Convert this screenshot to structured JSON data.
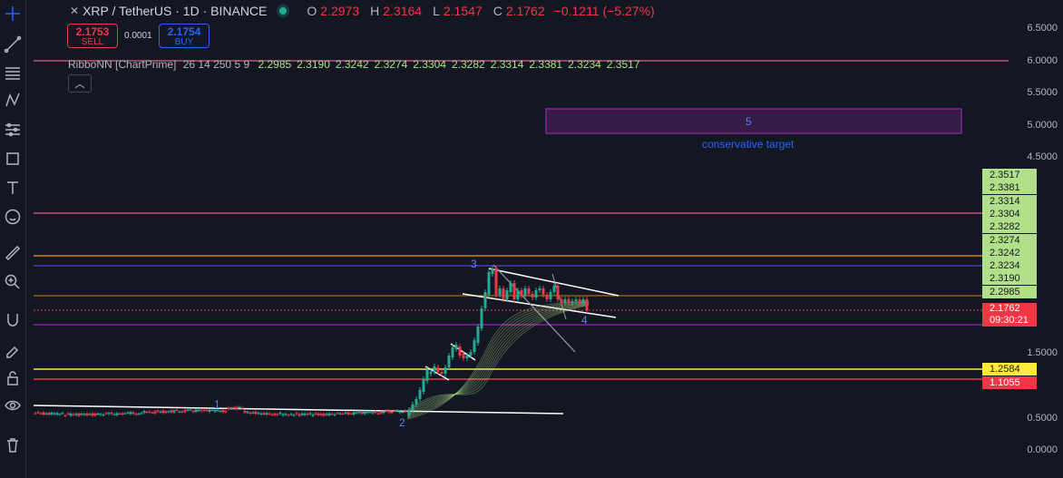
{
  "header": {
    "symbol": "XRP / TetherUS · 1D · BINANCE",
    "ohlc": [
      {
        "key": "O",
        "value": "2.2973"
      },
      {
        "key": "H",
        "value": "2.3164"
      },
      {
        "key": "L",
        "value": "2.1547"
      },
      {
        "key": "C",
        "value": "2.1762"
      }
    ],
    "change": "−0.1211 (−5.27%)"
  },
  "trade": {
    "sell_price": "2.1753",
    "sell_label": "SELL",
    "spread": "0.0001",
    "buy_price": "2.1754",
    "buy_label": "BUY"
  },
  "indicator": {
    "name": "RibboNN [ChartPrime]",
    "params": "26 14 250 5 9",
    "values": [
      "2.2985",
      "2.3190",
      "2.3242",
      "2.3274",
      "2.3304",
      "2.3282",
      "2.3314",
      "2.3381",
      "2.3234",
      "2.3517"
    ]
  },
  "price_axis": {
    "ticks": [
      "6.5000",
      "6.0000",
      "5.5000",
      "5.0000",
      "4.5000",
      "1.5000",
      "0.5000",
      "0.0000"
    ],
    "ribbon_labels": [
      "2.3517",
      "2.3381",
      "2.3314",
      "2.3304",
      "2.3282",
      "2.3274",
      "2.3242",
      "2.3234",
      "2.3190",
      "2.2985"
    ],
    "current_price": "2.1762",
    "countdown": "09:30:21",
    "level_yellow": "1.2584",
    "level_red": "1.1055"
  },
  "annotations": {
    "target_box_label": "5",
    "target_caption": "conservative target",
    "wave_labels": [
      "1",
      "2",
      "3",
      "4"
    ]
  },
  "colors": {
    "up": "#22ab94",
    "down": "#f23645",
    "accent": "#2962ff",
    "ribbon": "#b2df8a",
    "target": "#9c27b0"
  },
  "tools": [
    "crosshair-icon",
    "trendline-icon",
    "fib-icon",
    "pattern-icon",
    "forecast-icon",
    "shape-icon",
    "text-icon",
    "emoji-icon",
    "ruler-icon",
    "zoom-in-icon",
    "magnet-icon",
    "lock-draw-icon",
    "lock-icon",
    "eye-icon",
    "trash-icon"
  ]
}
